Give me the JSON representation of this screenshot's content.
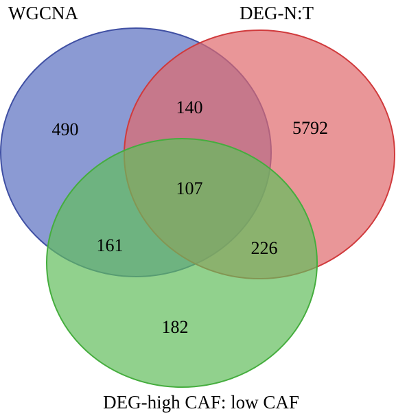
{
  "sets": [
    {
      "key": "wgcna",
      "label": "WGCNA",
      "fill": "#5a6fc0",
      "stroke": "#3f4fa3"
    },
    {
      "key": "deg_nt",
      "label": "DEG-N:T",
      "fill": "#e06a6c",
      "stroke": "#d03a3c"
    },
    {
      "key": "deg_caf",
      "label": "DEG-high CAF: low CAF",
      "fill": "#63be5c",
      "stroke": "#45ad3e"
    }
  ],
  "regions": {
    "wgcna_only": "490",
    "deg_nt_only": "5792",
    "deg_caf_only": "182",
    "wgcna_deg_nt": "140",
    "wgcna_deg_caf": "161",
    "deg_nt_deg_caf": "226",
    "all_three": "107"
  }
}
